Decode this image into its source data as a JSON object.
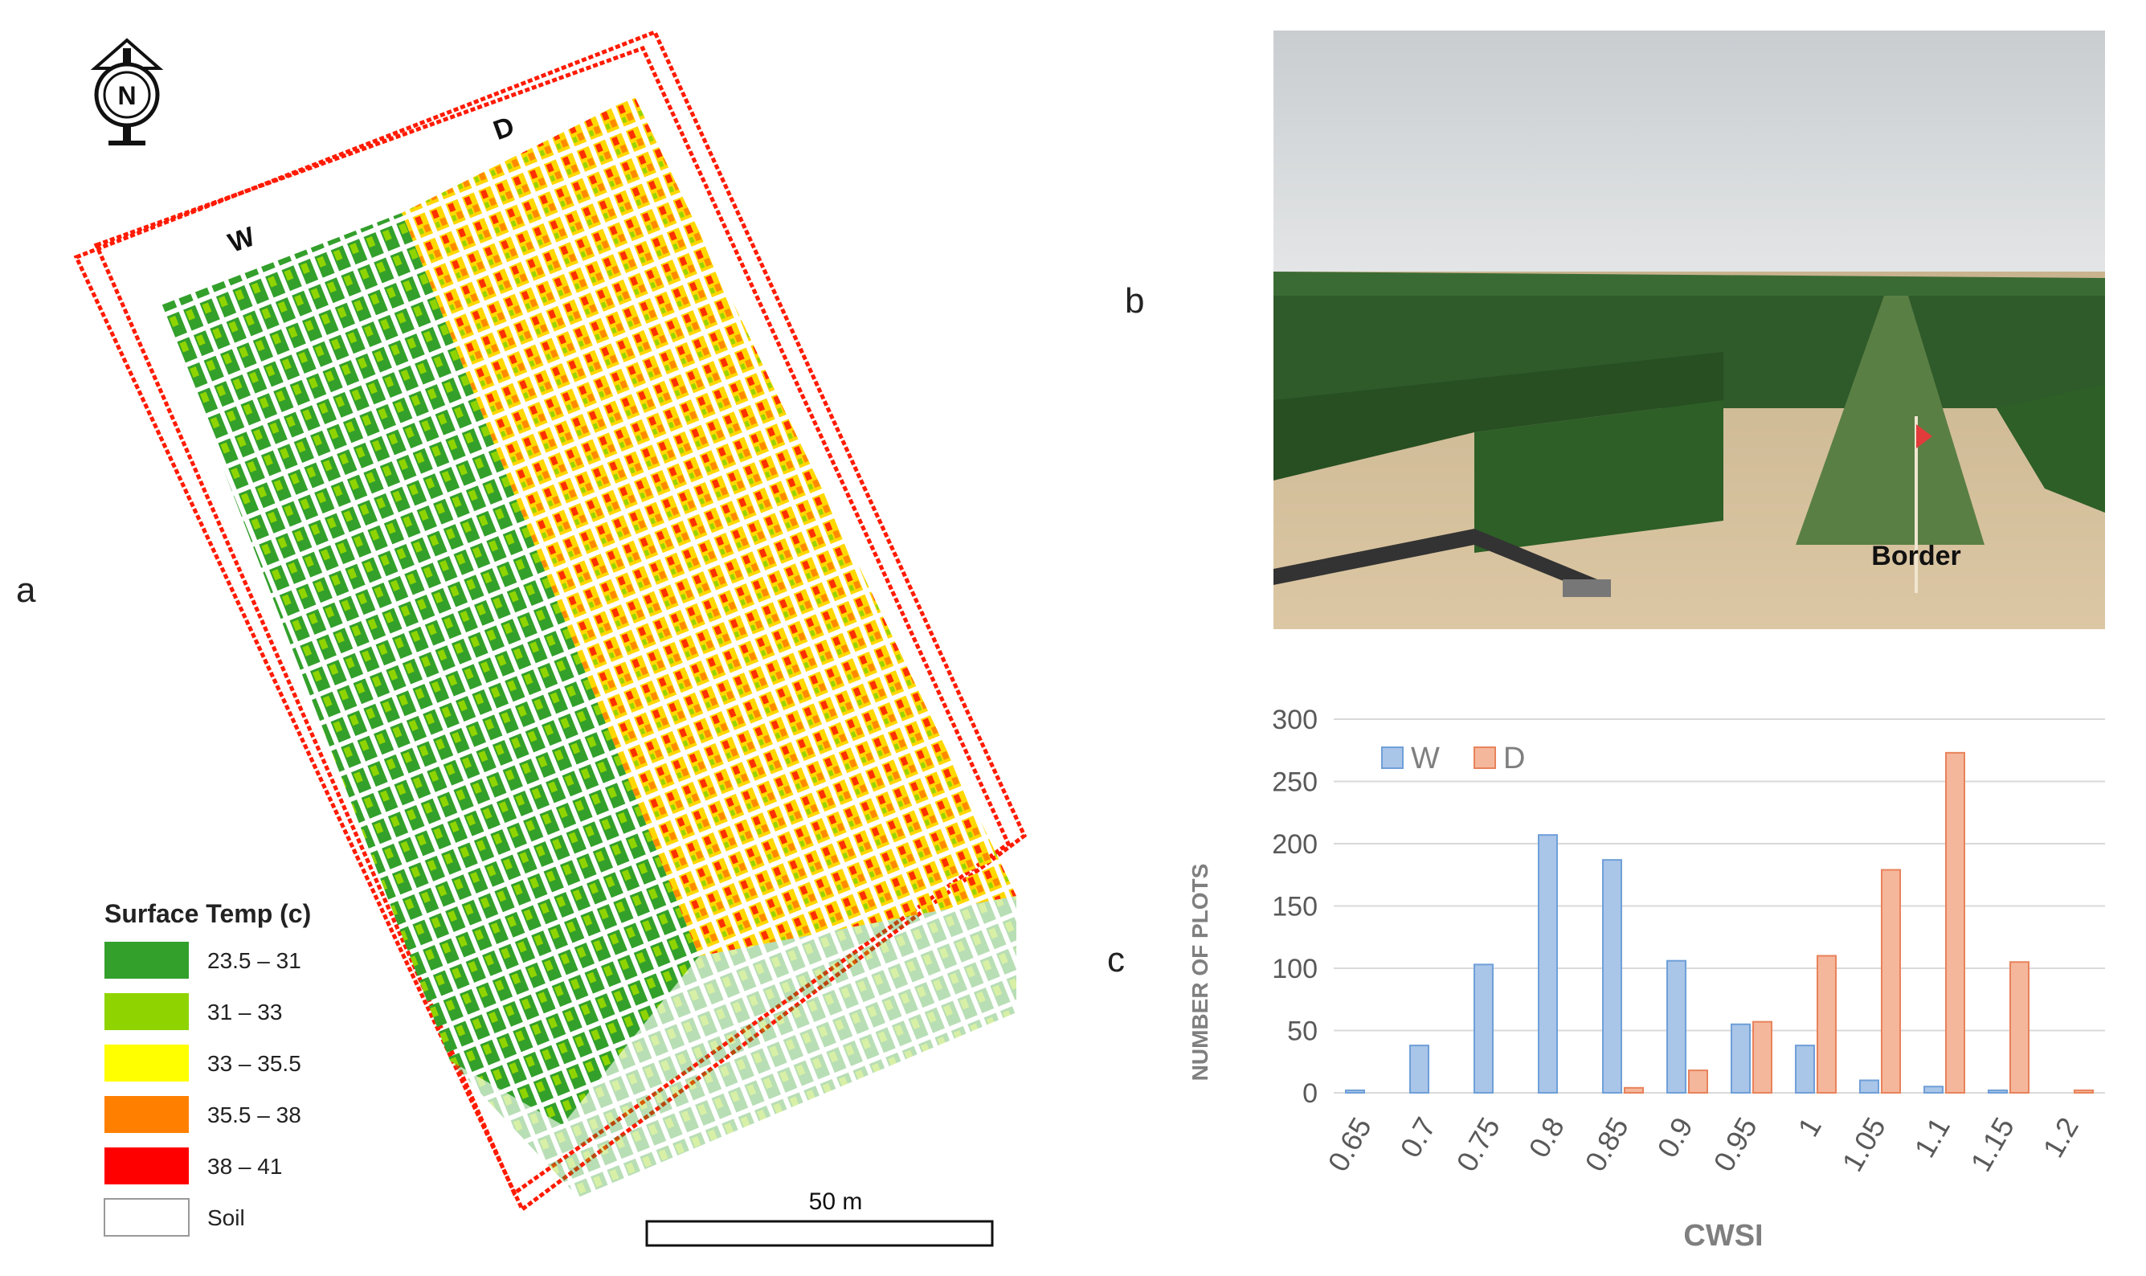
{
  "panel_labels": {
    "a": "a",
    "b": "b",
    "c": "c"
  },
  "map": {
    "north_icon_letter": "N",
    "section_labels": {
      "wet": "W",
      "dry": "D"
    },
    "legend_title": "Surface Temp (c)",
    "legend": [
      {
        "label": "23.5 – 31",
        "color": "#33a02c"
      },
      {
        "label": "31 – 33",
        "color": "#8fd400"
      },
      {
        "label": "33 – 35.5",
        "color": "#ffff00"
      },
      {
        "label": "35.5 – 38",
        "color": "#ff8000"
      },
      {
        "label": "38 – 41",
        "color": "#ff0000"
      },
      {
        "label": "Soil",
        "color": "#ffffff"
      }
    ],
    "scale_bar_label": "50 m"
  },
  "photo": {
    "annotation": "Border"
  },
  "chart_data": {
    "type": "bar",
    "categories": [
      "0.65",
      "0.7",
      "0.75",
      "0.8",
      "0.85",
      "0.9",
      "0.95",
      "1",
      "1.05",
      "1.1",
      "1.15",
      "1.2"
    ],
    "series": [
      {
        "name": "W",
        "color": "#a9c5e8",
        "stroke": "#6f9fd8",
        "values": [
          2,
          38,
          103,
          207,
          187,
          106,
          55,
          38,
          10,
          5,
          2,
          0
        ]
      },
      {
        "name": "D",
        "color": "#f5b79b",
        "stroke": "#e8825b",
        "values": [
          0,
          0,
          0,
          0,
          4,
          18,
          57,
          110,
          179,
          273,
          105,
          2
        ]
      }
    ],
    "xlabel": "CWSI",
    "ylabel": "NUMBER OF PLOTS",
    "ylim": [
      0,
      300
    ],
    "yticks": [
      0,
      50,
      100,
      150,
      200,
      250,
      300
    ],
    "grid": true,
    "legend_position": "top-left"
  }
}
